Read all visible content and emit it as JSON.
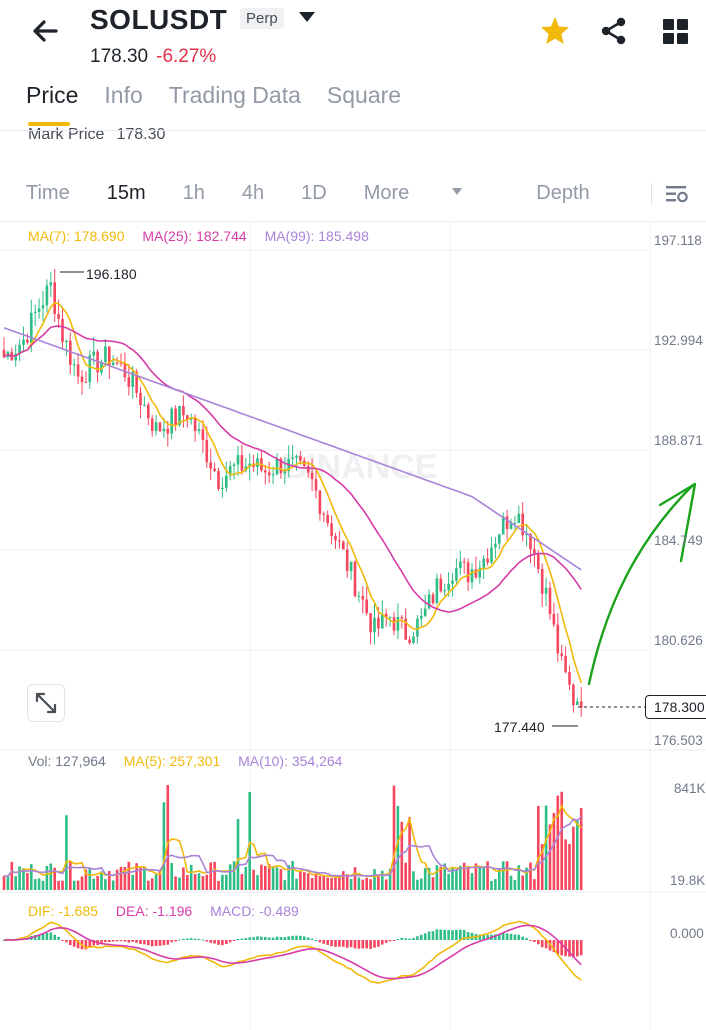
{
  "header": {
    "symbol": "SOLUSDT",
    "contract_type": "Perp",
    "last_price": "178.30",
    "change_pct": "-6.27%"
  },
  "tabs": [
    "Price",
    "Info",
    "Trading Data",
    "Square"
  ],
  "mark_price": {
    "label": "Mark Price",
    "value": "178.30"
  },
  "intervals": [
    "Time",
    "15m",
    "1h",
    "4h",
    "1D",
    "More",
    "Depth"
  ],
  "active_interval": "15m",
  "ma_legend": {
    "ma7": "MA(7): 178.690",
    "ma25": "MA(25): 182.744",
    "ma99": "MA(99): 185.498"
  },
  "price_axis": [
    "197.118",
    "192.994",
    "188.871",
    "184.749",
    "180.626",
    "176.503"
  ],
  "high_label": "196.180",
  "low_label": "177.440",
  "current_price_tag": "178.300",
  "vol_legend": {
    "vol": "Vol: 127,964",
    "ma5": "MA(5): 257,301",
    "ma10": "MA(10): 354,264"
  },
  "vol_axis": [
    "841K",
    "19.8K"
  ],
  "macd_legend": {
    "dif": "DIF: -1.685",
    "dea": "DEA: -1.196",
    "macd": "MACD: -0.489"
  },
  "macd_axis": "0.000",
  "watermark": "BINANCE",
  "colors": {
    "up": "#2ebd85",
    "down": "#f6465d",
    "ma7": "#f0b90b",
    "ma25": "#d63ca8",
    "ma99": "#a883d8",
    "accent": "#f0b90b",
    "annotation": "#1aa31a"
  },
  "icons": [
    "back-arrow-icon",
    "star-icon",
    "share-icon",
    "grid-icon",
    "chart-settings-icon",
    "expand-icon"
  ]
}
